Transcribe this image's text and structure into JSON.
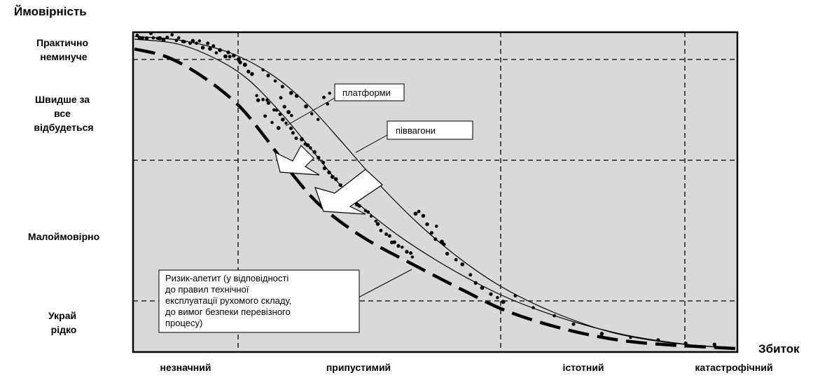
{
  "chart_data": {
    "type": "scatter",
    "ylabel": "Ймовірність",
    "xlabel": "Збиток",
    "y_categories": [
      "Практично неминуче",
      "Швидше за все відбудеться",
      "Малоймовірно",
      "Украй рідко"
    ],
    "y_category_lines": [
      [
        "Практично",
        "неминуче"
      ],
      [
        "Швидше за",
        "все",
        "відбудеться"
      ],
      [
        "Малоймовірно"
      ],
      [
        "Украй",
        "рідко"
      ]
    ],
    "x_categories": [
      "незначний",
      "припустимий",
      "істотний",
      "катастрофічний"
    ],
    "background": "#d9d9d9",
    "grid": "dashed",
    "callouts": {
      "platforms": "платформи",
      "halfwagons": "піввагони",
      "risk_appetite_lines": [
        "Ризик-апетит (у відповідності",
        "до правил технічної",
        "експлуатації рухомого складу,",
        "до вимог безпеки перевізного",
        "процесу)"
      ]
    },
    "series": [
      {
        "name": "платформи",
        "style": "dots",
        "color": "#000000"
      },
      {
        "name": "піввагони",
        "style": "thin-curve",
        "color": "#000000"
      },
      {
        "name": "Ризик-апетит (у відповідності до правил технічної експлуатації рухомого складу, до вимог безпеки перевізного процесу)",
        "style": "thick-dashed-curve",
        "color": "#000000"
      }
    ]
  }
}
